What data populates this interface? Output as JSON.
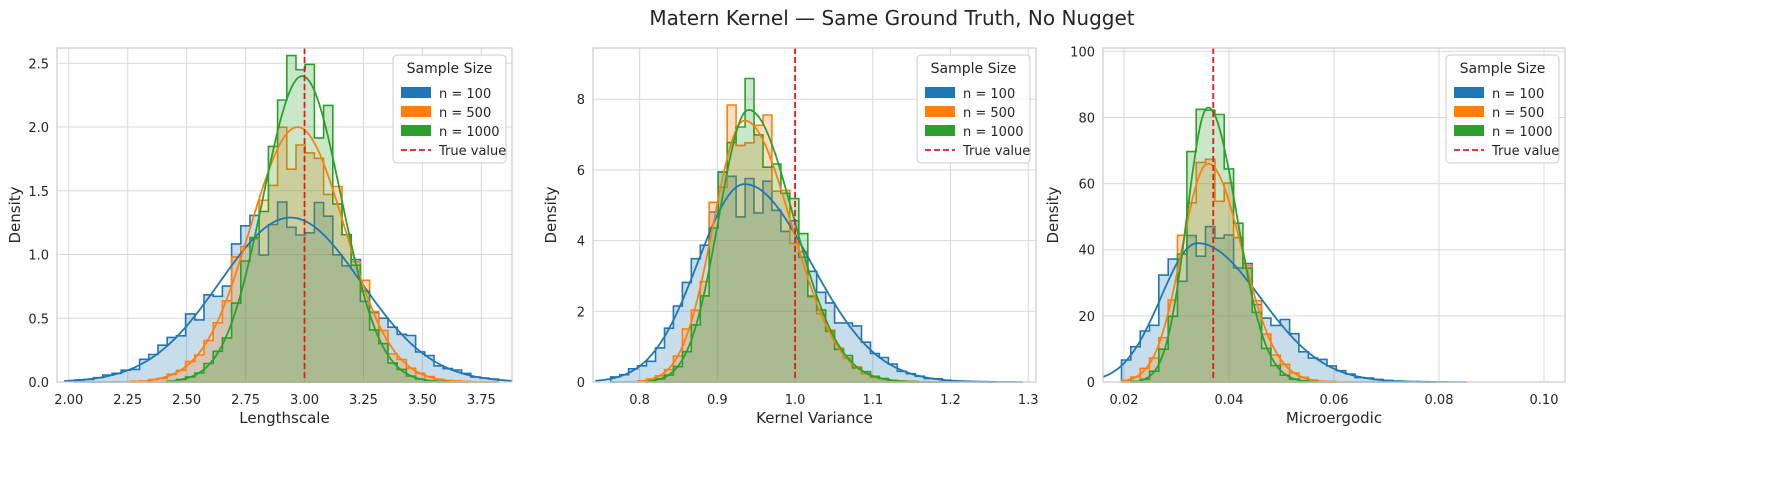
{
  "figure": {
    "title": "Matern Kernel — Same Ground Truth, No Nugget",
    "colors": {
      "n100": "#1f77b4",
      "n500": "#ff7f0e",
      "n1000": "#2ca02c",
      "truth": "#e41a1c",
      "grid": "#d9d9d9",
      "spine": "#cccccc"
    }
  },
  "chart_data": [
    {
      "type": "histogram",
      "title": "",
      "xlabel": "Lengthscale",
      "ylabel": "Density",
      "xlim": [
        1.95,
        3.88
      ],
      "ylim": [
        0,
        2.62
      ],
      "xticks": [
        "2.00",
        "2.25",
        "2.50",
        "2.75",
        "3.00",
        "3.25",
        "3.50",
        "3.75"
      ],
      "xtick_values": [
        2.0,
        2.25,
        2.5,
        2.75,
        3.0,
        3.25,
        3.5,
        3.75
      ],
      "yticks": [
        "0.0",
        "0.5",
        "1.0",
        "1.5",
        "2.0",
        "2.5"
      ],
      "ytick_values": [
        0,
        0.5,
        1.0,
        1.5,
        2.0,
        2.5
      ],
      "true_value": 3.0,
      "legend": {
        "title": "Sample Size",
        "position": "top-right",
        "entries": [
          "n = 100",
          "n = 500",
          "n = 1000",
          "True value"
        ]
      },
      "series": [
        {
          "name": "n = 100",
          "kde": {
            "mu": 2.94,
            "sigma": 0.3,
            "peak": 1.29
          }
        },
        {
          "name": "n = 500",
          "kde": {
            "mu": 2.97,
            "sigma": 0.2,
            "peak": 2.0
          }
        },
        {
          "name": "n = 1000",
          "kde": {
            "mu": 2.99,
            "sigma": 0.165,
            "peak": 2.4
          }
        }
      ]
    },
    {
      "type": "histogram",
      "title": "",
      "xlabel": "Kernel Variance",
      "ylabel": "Density",
      "xlim": [
        0.74,
        1.31
      ],
      "ylim": [
        0,
        9.45
      ],
      "xticks": [
        "0.8",
        "0.9",
        "1.0",
        "1.1",
        "1.2",
        "1.3"
      ],
      "xtick_values": [
        0.8,
        0.9,
        1.0,
        1.1,
        1.2,
        1.3
      ],
      "yticks": [
        "0",
        "2",
        "4",
        "6",
        "8"
      ],
      "ytick_values": [
        0,
        2,
        4,
        6,
        8
      ],
      "true_value": 1.0,
      "legend": {
        "title": "Sample Size",
        "position": "top-right",
        "entries": [
          "n = 100",
          "n = 500",
          "n = 1000",
          "True value"
        ]
      },
      "series": [
        {
          "name": "n = 100",
          "kde": {
            "mu": 0.935,
            "sigmaL": 0.06,
            "sigmaR": 0.085,
            "peak": 5.6
          }
        },
        {
          "name": "n = 500",
          "kde": {
            "mu": 0.935,
            "sigmaL": 0.04,
            "sigmaR": 0.06,
            "peak": 7.4
          }
        },
        {
          "name": "n = 1000",
          "kde": {
            "mu": 0.94,
            "sigmaL": 0.038,
            "sigmaR": 0.058,
            "peak": 7.7
          }
        }
      ]
    },
    {
      "type": "histogram",
      "title": "",
      "xlabel": "Microergodic",
      "ylabel": "Density",
      "xlim": [
        0.016,
        0.104
      ],
      "ylim": [
        0,
        101
      ],
      "xticks": [
        "0.02",
        "0.04",
        "0.06",
        "0.08",
        "0.10"
      ],
      "xtick_values": [
        0.02,
        0.04,
        0.06,
        0.08,
        0.1
      ],
      "yticks": [
        "0",
        "20",
        "40",
        "60",
        "80",
        "100"
      ],
      "ytick_values": [
        0,
        20,
        40,
        60,
        80,
        100
      ],
      "true_value": 0.037,
      "legend": {
        "title": "Sample Size",
        "position": "top-right",
        "entries": [
          "n = 100",
          "n = 500",
          "n = 1000",
          "True value"
        ]
      },
      "series": [
        {
          "name": "n = 100",
          "kde": {
            "mu": 0.034,
            "sigmaL": 0.007,
            "sigmaR": 0.012,
            "peak": 42
          }
        },
        {
          "name": "n = 500",
          "kde": {
            "mu": 0.036,
            "sigmaL": 0.005,
            "sigmaR": 0.0065,
            "peak": 66
          }
        },
        {
          "name": "n = 1000",
          "kde": {
            "mu": 0.036,
            "sigmaL": 0.004,
            "sigmaR": 0.0055,
            "peak": 83
          }
        }
      ]
    }
  ]
}
